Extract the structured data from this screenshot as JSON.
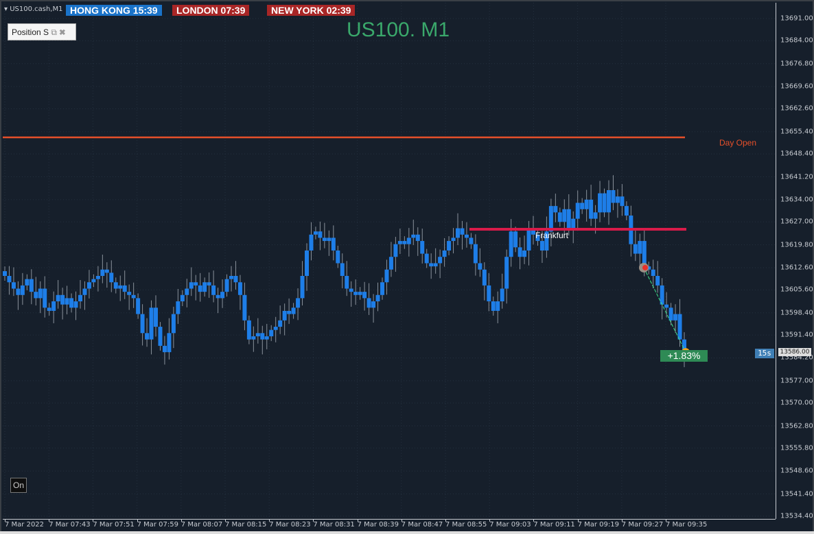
{
  "header": {
    "symbol": "US100.cash,M1",
    "title": "US100. M1"
  },
  "sessions": [
    {
      "label": "HONG KONG  15:39",
      "color": "#1a73c9"
    },
    {
      "label": "LONDON   07:39",
      "color": "#a82626"
    },
    {
      "label": "NEW YORK  02:39",
      "color": "#a82626"
    }
  ],
  "position_panel": {
    "label": "Position S",
    "restore_icon": "restore-icon",
    "close_icon": "close-icon"
  },
  "labels": {
    "day_open": "Day Open",
    "frankfurt": "Frankfurt",
    "change_pct": "+1.83%",
    "timer": "15s",
    "current_price": "13586.00",
    "on_button": "On"
  },
  "colors": {
    "background": "#161f2b",
    "candle": "#1e7ee8",
    "day_open_line": "#e8502a",
    "frankfurt_line": "#d81b4a",
    "profit": "#2e8a55"
  },
  "chart_data": {
    "type": "candlestick",
    "price_ticks": [
      "13691.00",
      "13684.00",
      "13676.80",
      "13669.60",
      "13662.60",
      "13655.40",
      "13648.40",
      "13641.20",
      "13634.00",
      "13627.00",
      "13619.80",
      "13612.60",
      "13605.60",
      "13598.40",
      "13591.40",
      "13584.20",
      "13577.00",
      "13570.00",
      "13562.80",
      "13555.80",
      "13548.60",
      "13541.40",
      "13534.40"
    ],
    "ylim": [
      13534.4,
      13691.0
    ],
    "time_ticks": [
      "7 Mar 2022",
      "7 Mar 07:43",
      "7 Mar 07:51",
      "7 Mar 07:59",
      "7 Mar 08:07",
      "7 Mar 08:15",
      "7 Mar 08:23",
      "7 Mar 08:31",
      "7 Mar 08:39",
      "7 Mar 08:47",
      "7 Mar 08:55",
      "7 Mar 09:03",
      "7 Mar 09:11",
      "7 Mar 09:19",
      "7 Mar 09:27",
      "7 Mar 09:35"
    ],
    "day_open": 13653.6,
    "frankfurt_level": 13624.7,
    "trade_entry": 13612.6,
    "trade_exit": 13586.0,
    "closes": [
      13610,
      13608,
      13606,
      13604,
      13607,
      13609,
      13605,
      13603,
      13606,
      13600,
      13599,
      13602,
      13604,
      13601,
      13603,
      13600,
      13602,
      13604,
      13606,
      13608,
      13609,
      13610,
      13612,
      13611,
      13608,
      13606,
      13607,
      13605,
      13604,
      13603,
      13598,
      13592,
      13590,
      13600,
      13594,
      13588,
      13586,
      13592,
      13598,
      13602,
      13604,
      13606,
      13608,
      13607,
      13605,
      13608,
      13607,
      13604,
      13603,
      13605,
      13609,
      13610,
      13608,
      13604,
      13596,
      13590,
      13591,
      13592,
      13590,
      13591,
      13593,
      13594,
      13596,
      13599,
      13598,
      13600,
      13603,
      13610,
      13618,
      13623,
      13624,
      13622,
      13621,
      13622,
      13618,
      13614,
      13610,
      13606,
      13605,
      13604,
      13605,
      13603,
      13600,
      13602,
      13604,
      13608,
      13612,
      13616,
      13620,
      13621,
      13620,
      13622,
      13623,
      13621,
      13617,
      13614,
      13613,
      13614,
      13616,
      13618,
      13621,
      13622,
      13625,
      13623,
      13622,
      13620,
      13614,
      13612,
      13607,
      13602,
      13599,
      13602,
      13606,
      13616,
      13624,
      13619,
      13616,
      13618,
      13625,
      13623,
      13621,
      13618,
      13624,
      13632,
      13630,
      13627,
      13631,
      13625,
      13628,
      13633,
      13631,
      13634,
      13628,
      13630,
      13636,
      13630,
      13637,
      13633,
      13635,
      13632,
      13629,
      13620,
      13617,
      13621,
      13613,
      13612,
      13610,
      13607,
      13601,
      13600,
      13596,
      13598,
      13590,
      13586
    ]
  }
}
